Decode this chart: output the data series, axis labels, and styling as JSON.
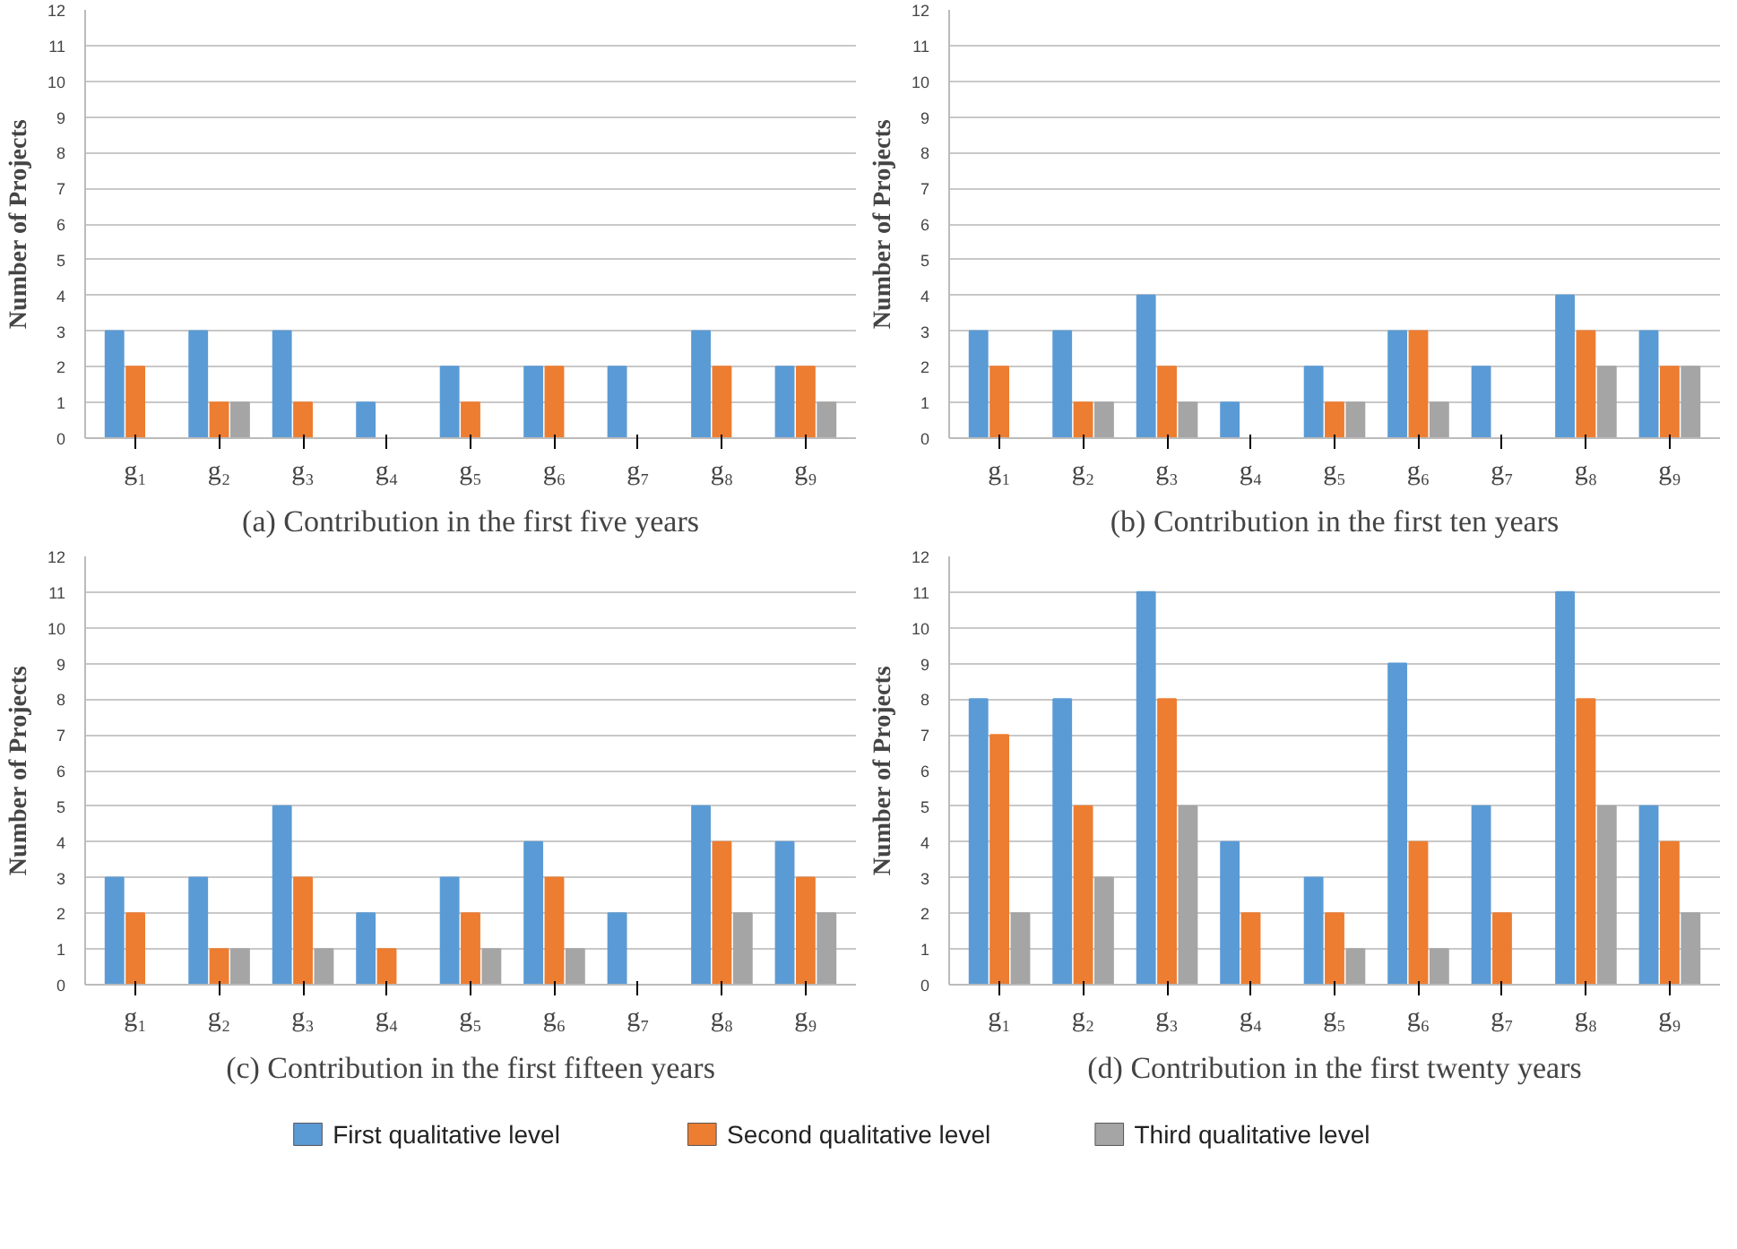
{
  "chart_data": [
    {
      "type": "bar",
      "title": "(a) Contribution in the first five years",
      "ylabel": "Number of Projects",
      "categories": [
        "g₁",
        "g₂",
        "g₃",
        "g₄",
        "g₅",
        "g₆",
        "g₇",
        "g₈",
        "g₉"
      ],
      "ylim": [
        0,
        12
      ],
      "yticks": [
        0,
        1,
        2,
        3,
        4,
        5,
        6,
        7,
        8,
        9,
        10,
        11,
        12
      ],
      "grid": "y",
      "legend": false,
      "series": [
        {
          "color": "#5b9bd5",
          "values": [
            3,
            3,
            3,
            1,
            2,
            2,
            2,
            3,
            2
          ]
        },
        {
          "color": "#ed7d31",
          "values": [
            2,
            1,
            1,
            0,
            1,
            2,
            0,
            2,
            2
          ]
        },
        {
          "color": "#a5a5a5",
          "values": [
            0,
            1,
            0,
            0,
            0,
            0,
            0,
            0,
            1
          ]
        }
      ]
    },
    {
      "type": "bar",
      "title": "(b) Contribution in the first ten years",
      "ylabel": "Number of Projects",
      "categories": [
        "g₁",
        "g₂",
        "g₃",
        "g₄",
        "g₅",
        "g₆",
        "g₇",
        "g₈",
        "g₉"
      ],
      "ylim": [
        0,
        12
      ],
      "yticks": [
        0,
        1,
        2,
        3,
        4,
        5,
        6,
        7,
        8,
        9,
        10,
        11,
        12
      ],
      "grid": "y",
      "legend": false,
      "series": [
        {
          "color": "#5b9bd5",
          "values": [
            3,
            3,
            4,
            1,
            2,
            3,
            2,
            4,
            3
          ]
        },
        {
          "color": "#ed7d31",
          "values": [
            2,
            1,
            2,
            0,
            1,
            3,
            0,
            3,
            2
          ]
        },
        {
          "color": "#a5a5a5",
          "values": [
            0,
            1,
            1,
            0,
            1,
            1,
            0,
            2,
            2
          ]
        }
      ]
    },
    {
      "type": "bar",
      "title": "(c) Contribution in the first fifteen years",
      "ylabel": "Number of Projects",
      "categories": [
        "g₁",
        "g₂",
        "g₃",
        "g₄",
        "g₅",
        "g₆",
        "g₇",
        "g₈",
        "g₉"
      ],
      "ylim": [
        0,
        12
      ],
      "yticks": [
        0,
        1,
        2,
        3,
        4,
        5,
        6,
        7,
        8,
        9,
        10,
        11,
        12
      ],
      "grid": "y",
      "legend": false,
      "series": [
        {
          "color": "#5b9bd5",
          "values": [
            3,
            3,
            5,
            2,
            3,
            4,
            2,
            5,
            4
          ]
        },
        {
          "color": "#ed7d31",
          "values": [
            2,
            1,
            3,
            1,
            2,
            3,
            0,
            4,
            3
          ]
        },
        {
          "color": "#a5a5a5",
          "values": [
            0,
            1,
            1,
            0,
            1,
            1,
            0,
            2,
            2
          ]
        }
      ]
    },
    {
      "type": "bar",
      "title": "(d) Contribution in the first twenty years",
      "ylabel": "Number of Projects",
      "categories": [
        "g₁",
        "g₂",
        "g₃",
        "g₄",
        "g₅",
        "g₆",
        "g₇",
        "g₈",
        "g₉"
      ],
      "ylim": [
        0,
        12
      ],
      "yticks": [
        0,
        1,
        2,
        3,
        4,
        5,
        6,
        7,
        8,
        9,
        10,
        11,
        12
      ],
      "grid": "y",
      "legend": "bottom",
      "series": [
        {
          "name": "First qualitative level",
          "color": "#5b9bd5",
          "values": [
            8,
            8,
            11,
            4,
            3,
            9,
            5,
            11,
            5
          ]
        },
        {
          "name": "Second qualitative level",
          "color": "#ed7d31",
          "values": [
            7,
            5,
            8,
            2,
            2,
            4,
            2,
            8,
            4
          ]
        },
        {
          "name": "Third qualitative level",
          "color": "#a5a5a5",
          "values": [
            2,
            3,
            5,
            0,
            1,
            1,
            0,
            5,
            2
          ]
        }
      ]
    }
  ]
}
